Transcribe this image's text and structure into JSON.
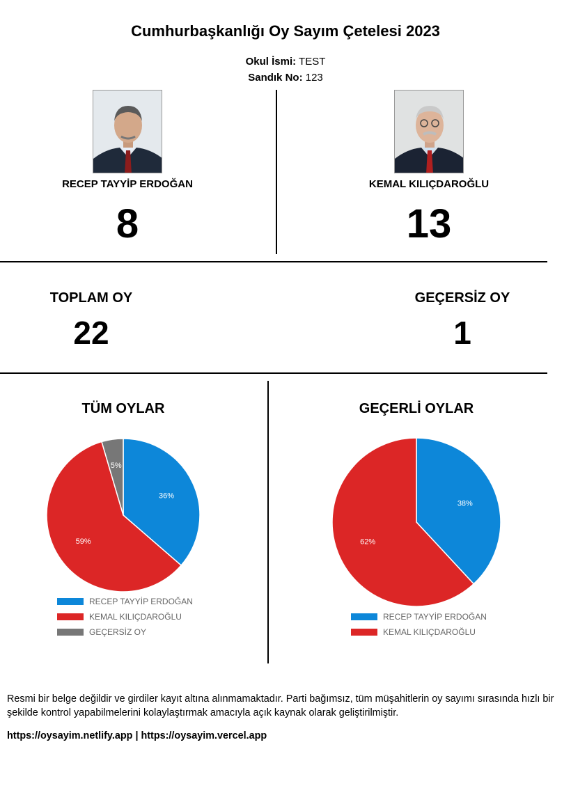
{
  "header": {
    "title": "Cumhurbaşkanlığı Oy Sayım Çetelesi 2023",
    "school_label": "Okul İsmi:",
    "school_value": "TEST",
    "box_label": "Sandık No:",
    "box_value": "123"
  },
  "candidates": [
    {
      "name": "RECEP TAYYİP ERDOĞAN",
      "votes": "8",
      "color": "#0d87d9"
    },
    {
      "name": "KEMAL KILIÇDAROĞLU",
      "votes": "13",
      "color": "#dc2626"
    }
  ],
  "totals": {
    "total_label": "TOPLAM OY",
    "total_value": "22",
    "invalid_label": "GEÇERSİZ OY",
    "invalid_value": "1",
    "invalid_color": "#777777"
  },
  "chart_data": [
    {
      "type": "pie",
      "title": "TÜM OYLAR",
      "categories": [
        "RECEP TAYYİP ERDOĞAN",
        "KEMAL KILIÇDAROĞLU",
        "GEÇERSİZ OY"
      ],
      "values": [
        8,
        13,
        1
      ],
      "labels": [
        "36%",
        "59%",
        "5%"
      ],
      "colors": [
        "#0d87d9",
        "#dc2626",
        "#777777"
      ],
      "legend": "bottom"
    },
    {
      "type": "pie",
      "title": "GEÇERLİ OYLAR",
      "categories": [
        "RECEP TAYYİP ERDOĞAN",
        "KEMAL KILIÇDAROĞLU"
      ],
      "values": [
        8,
        13
      ],
      "labels": [
        "38%",
        "62%"
      ],
      "colors": [
        "#0d87d9",
        "#dc2626"
      ],
      "legend": "bottom"
    }
  ],
  "footer": {
    "disclaimer": "Resmi bir belge değildir ve girdiler kayıt altına alınmamaktadır. Parti bağımsız, tüm müşahitlerin oy sayımı sırasında hızlı bir şekilde kontrol yapabilmelerini kolaylaştırmak amacıyla açık kaynak olarak geliştirilmiştir.",
    "links": "https://oysayim.netlify.app | https://oysayim.vercel.app"
  }
}
